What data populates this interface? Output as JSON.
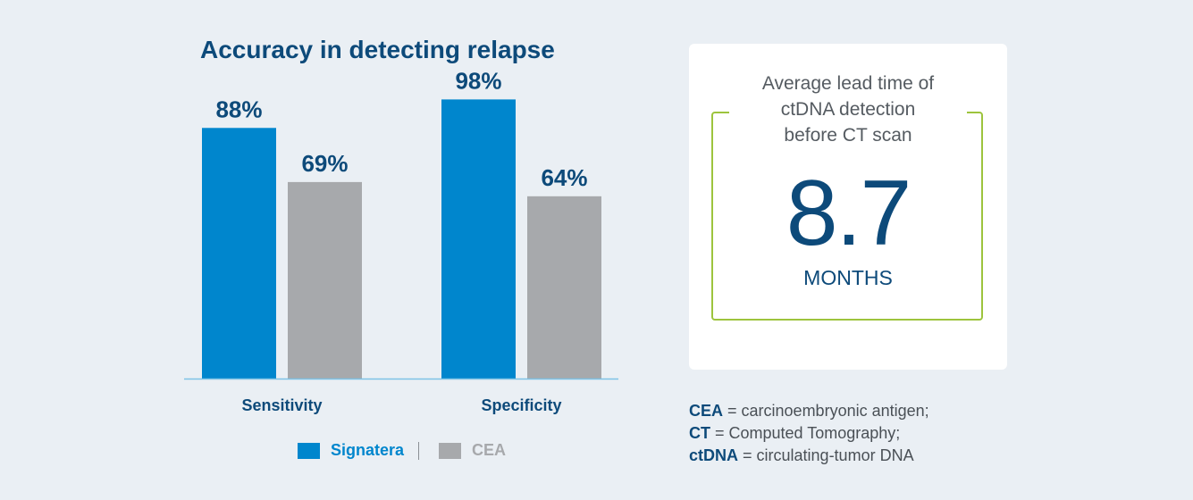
{
  "colors": {
    "signatera": "#0086cd",
    "cea": "#a7a9ac",
    "title": "#0d4a7a",
    "axis": "#7ec3e6"
  },
  "chart_data": {
    "type": "bar",
    "title": "Accuracy in detecting relapse",
    "categories": [
      "Sensitivity",
      "Specificity"
    ],
    "series": [
      {
        "name": "Signatera",
        "values": [
          88,
          98
        ],
        "labels": [
          "88%",
          "98%"
        ]
      },
      {
        "name": "CEA",
        "values": [
          69,
          64
        ],
        "labels": [
          "69%",
          "64%"
        ]
      }
    ],
    "ylim": [
      0,
      100
    ],
    "xlabel": "",
    "ylabel": "",
    "grid": false,
    "legend": "bottom"
  },
  "lead_time": {
    "heading_lines": [
      "Average lead time of",
      "ctDNA detection",
      "before CT scan"
    ],
    "value": "8.7",
    "unit": "MONTHS"
  },
  "footnotes": [
    {
      "term": "CEA",
      "definition": " = carcinoembryonic antigen;"
    },
    {
      "term": "CT",
      "definition": " = Computed Tomography;"
    },
    {
      "term": "ctDNA",
      "definition": " = circulating-tumor DNA"
    }
  ]
}
